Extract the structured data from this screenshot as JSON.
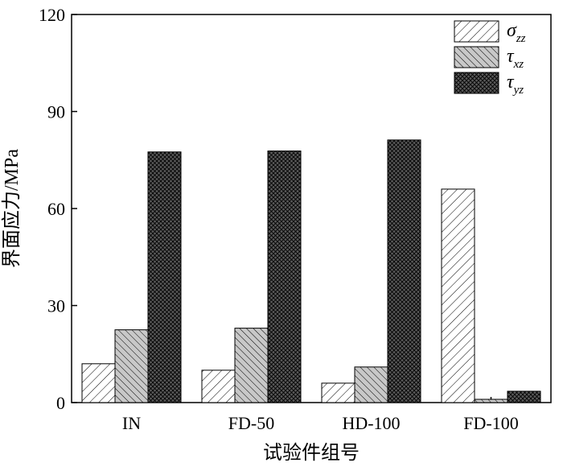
{
  "chart_data": {
    "type": "bar",
    "categories": [
      "IN",
      "FD-50",
      "HD-100",
      "FD-100"
    ],
    "series": [
      {
        "name": "σ",
        "subscript": "zz",
        "values": [
          12,
          10,
          6,
          66
        ]
      },
      {
        "name": "τ",
        "subscript": "xz",
        "values": [
          22.5,
          23,
          11,
          1
        ]
      },
      {
        "name": "τ",
        "subscript": "yz",
        "values": [
          77.5,
          77.8,
          81.2,
          3.5
        ]
      }
    ],
    "xlabel": "试验件组号",
    "ylabel": "界面应力/MPa",
    "ylim": [
      0,
      120
    ],
    "yticks": [
      0,
      30,
      60,
      90,
      120
    ],
    "legend_position": "top-right",
    "grid": false,
    "colors": {
      "axis": "#000000",
      "light_fill": "#ffffff",
      "mid_fill": "#c8c8c8",
      "dark_fill": "#5a5a5a"
    }
  }
}
